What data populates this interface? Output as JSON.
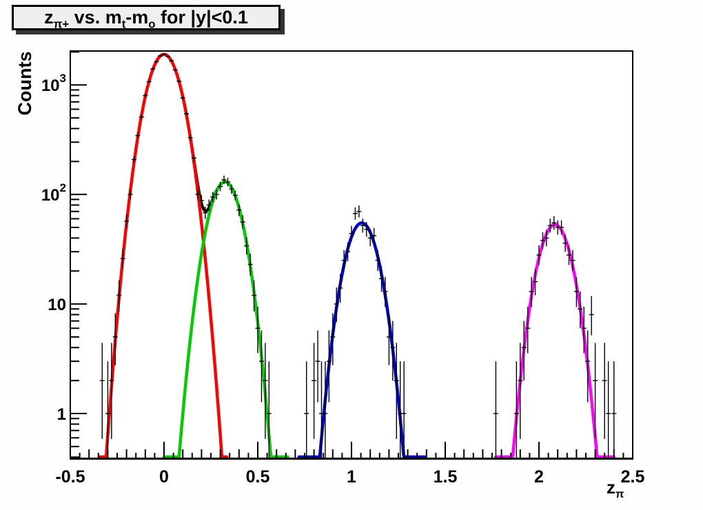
{
  "colors": {
    "canvas_bg": "#fefefe",
    "frame_bg": "#ffffff",
    "title_box_bg": "#efefef",
    "axis_color": "#000000",
    "data_color": "#000000",
    "fit_red": "#ff0000",
    "fit_green": "#00cc00",
    "fit_blue": "#0000cc",
    "fit_magenta": "#ff00ff",
    "fit_total": "#000000"
  },
  "title": {
    "parts": [
      [
        "t",
        "z"
      ],
      [
        "s",
        "π+"
      ],
      [
        "t",
        " vs. m"
      ],
      [
        "s",
        "t"
      ],
      [
        "t",
        "-m"
      ],
      [
        "s",
        "o"
      ],
      [
        "t",
        " for |y|<0.1"
      ]
    ]
  },
  "chart_data": {
    "type": "scatter",
    "title": "z_{π+} vs. m_t-m_o for |y|<0.1",
    "xlabel": "z_π",
    "xlabel_parts": [
      [
        "t",
        "z"
      ],
      [
        "s",
        "π"
      ]
    ],
    "ylabel": "Counts",
    "xlim": [
      -0.5,
      2.5
    ],
    "ylim": [
      0.39,
      2040
    ],
    "yscale": "log",
    "grid": false,
    "legend": "none",
    "x_ticks": [
      {
        "v": -0.5,
        "label": "-0.5"
      },
      {
        "v": 0,
        "label": "0"
      },
      {
        "v": 0.5,
        "label": "0.5"
      },
      {
        "v": 1,
        "label": "1"
      },
      {
        "v": 1.5,
        "label": "1.5"
      },
      {
        "v": 2,
        "label": "2"
      },
      {
        "v": 2.5,
        "label": "2.5"
      }
    ],
    "y_ticks": [
      {
        "v": 1,
        "label": "1"
      },
      {
        "v": 10,
        "label": "10"
      },
      {
        "v": 100,
        "label": "10^2"
      },
      {
        "v": 1000,
        "label": "10^3"
      }
    ],
    "fits": [
      {
        "name": "fit-total-black",
        "color": "#000000",
        "sum_of": [
          1,
          2
        ],
        "draw_range": [
          0.14,
          0.4
        ],
        "width": 4
      },
      {
        "name": "fit-red-gaussian",
        "color": "#ff0000",
        "amplitude": 1900,
        "mean": 0.0,
        "sigma": 0.075,
        "draw_range": [
          -0.345,
          0.335
        ],
        "width": 4.5
      },
      {
        "name": "fit-green-gaussian",
        "color": "#00cc00",
        "amplitude": 130,
        "mean": 0.325,
        "sigma": 0.072,
        "draw_range": [
          0.0,
          0.66
        ],
        "width": 4.5
      },
      {
        "name": "fit-blue-gaussian",
        "color": "#0000cc",
        "amplitude": 55,
        "mean": 1.055,
        "sigma": 0.0715,
        "draw_range": [
          0.72,
          1.39
        ],
        "width": 4.5
      },
      {
        "name": "fit-magenta-gaussian",
        "color": "#ff00ff",
        "amplitude": 53,
        "mean": 2.085,
        "sigma": 0.072,
        "draw_range": [
          1.77,
          2.4
        ],
        "width": 4.5
      }
    ],
    "points": [
      [
        -0.33,
        2
      ],
      [
        -0.3,
        1
      ],
      [
        -0.28,
        2
      ],
      [
        -0.26,
        5
      ],
      [
        -0.24,
        12
      ],
      [
        -0.22,
        26
      ],
      [
        -0.2,
        57
      ],
      [
        -0.18,
        100
      ],
      [
        -0.16,
        208
      ],
      [
        -0.14,
        345
      ],
      [
        -0.12,
        510
      ],
      [
        -0.1,
        800
      ],
      [
        -0.08,
        1070
      ],
      [
        -0.06,
        1400
      ],
      [
        -0.04,
        1630
      ],
      [
        -0.02,
        1840
      ],
      [
        0.0,
        1900
      ],
      [
        0.02,
        1820
      ],
      [
        0.04,
        1660
      ],
      [
        0.06,
        1370
      ],
      [
        0.08,
        1080
      ],
      [
        0.1,
        760
      ],
      [
        0.12,
        545
      ],
      [
        0.14,
        330
      ],
      [
        0.16,
        215
      ],
      [
        0.18,
        100
      ],
      [
        0.2,
        88
      ],
      [
        0.22,
        68
      ],
      [
        0.24,
        80
      ],
      [
        0.26,
        95
      ],
      [
        0.28,
        100
      ],
      [
        0.3,
        118
      ],
      [
        0.32,
        136
      ],
      [
        0.34,
        130
      ],
      [
        0.36,
        112
      ],
      [
        0.38,
        98
      ],
      [
        0.4,
        72
      ],
      [
        0.42,
        56
      ],
      [
        0.44,
        34
      ],
      [
        0.46,
        23
      ],
      [
        0.48,
        12
      ],
      [
        0.5,
        6
      ],
      [
        0.52,
        3
      ],
      [
        0.54,
        2
      ],
      [
        0.56,
        1
      ],
      [
        0.76,
        1
      ],
      [
        0.8,
        2
      ],
      [
        0.82,
        3
      ],
      [
        0.84,
        1
      ],
      [
        0.86,
        1
      ],
      [
        0.88,
        3
      ],
      [
        0.9,
        5
      ],
      [
        0.92,
        10
      ],
      [
        0.94,
        14
      ],
      [
        0.96,
        25
      ],
      [
        0.98,
        30
      ],
      [
        1.0,
        44
      ],
      [
        1.02,
        67
      ],
      [
        1.04,
        70
      ],
      [
        1.06,
        52
      ],
      [
        1.08,
        48
      ],
      [
        1.1,
        40
      ],
      [
        1.12,
        42
      ],
      [
        1.14,
        25
      ],
      [
        1.16,
        17
      ],
      [
        1.18,
        13
      ],
      [
        1.2,
        5
      ],
      [
        1.22,
        4
      ],
      [
        1.24,
        2
      ],
      [
        1.26,
        1
      ],
      [
        1.28,
        1
      ],
      [
        1.77,
        1
      ],
      [
        1.88,
        1
      ],
      [
        1.9,
        2
      ],
      [
        1.92,
        4
      ],
      [
        1.94,
        6
      ],
      [
        1.96,
        13
      ],
      [
        1.98,
        16
      ],
      [
        2.0,
        28
      ],
      [
        2.02,
        38
      ],
      [
        2.04,
        40
      ],
      [
        2.06,
        52
      ],
      [
        2.08,
        55
      ],
      [
        2.1,
        50
      ],
      [
        2.12,
        50
      ],
      [
        2.14,
        36
      ],
      [
        2.16,
        28
      ],
      [
        2.18,
        25
      ],
      [
        2.2,
        13
      ],
      [
        2.22,
        9
      ],
      [
        2.24,
        6
      ],
      [
        2.26,
        3
      ],
      [
        2.28,
        8
      ],
      [
        2.3,
        2
      ],
      [
        2.35,
        2
      ],
      [
        2.37,
        1
      ],
      [
        2.4,
        1
      ]
    ]
  }
}
